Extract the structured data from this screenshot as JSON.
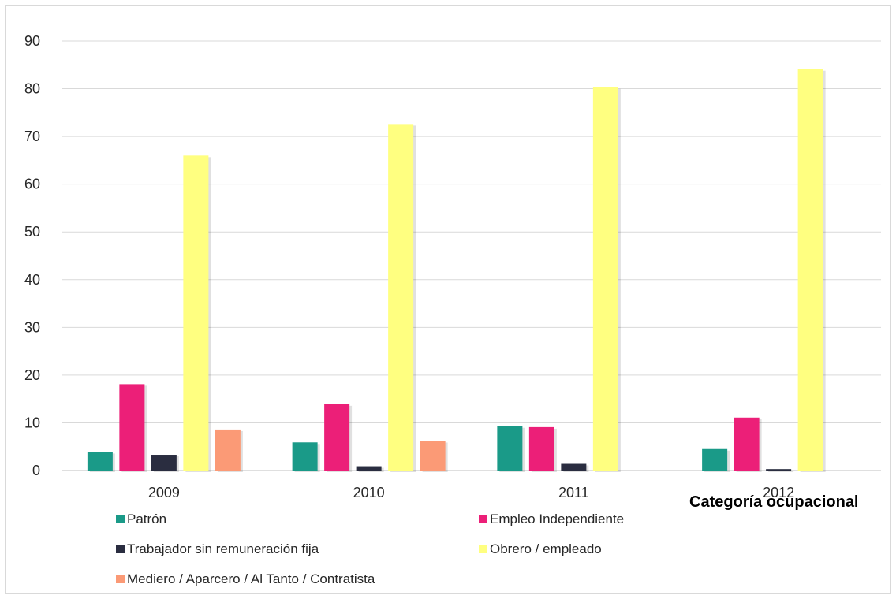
{
  "chart_data": {
    "type": "bar",
    "title": "Categoría ocupacional",
    "categories": [
      "2009",
      "2010",
      "2011",
      "2012"
    ],
    "ylim": [
      0,
      90
    ],
    "yticks": [
      0,
      10,
      20,
      30,
      40,
      50,
      60,
      70,
      80,
      90
    ],
    "grid": true,
    "legend_position": "bottom",
    "series": [
      {
        "name": "Patrón",
        "color": "#1a9a88",
        "values": [
          3.9,
          5.9,
          9.3,
          4.5
        ]
      },
      {
        "name": "Empleo Independiente",
        "color": "#ec1f78",
        "values": [
          18.1,
          13.9,
          9.1,
          11.1
        ]
      },
      {
        "name": "Trabajador sin remuneración fija",
        "color": "#2a2d40",
        "values": [
          3.3,
          0.9,
          1.4,
          0.3
        ]
      },
      {
        "name": "Obrero / empleado",
        "color": "#ffff80",
        "values": [
          66.0,
          72.6,
          80.3,
          84.1
        ]
      },
      {
        "name": "Mediero / Aparcero / Al Tanto / Contratista",
        "color": "#fb9a76",
        "values": [
          8.6,
          6.2,
          0,
          0
        ]
      }
    ]
  }
}
